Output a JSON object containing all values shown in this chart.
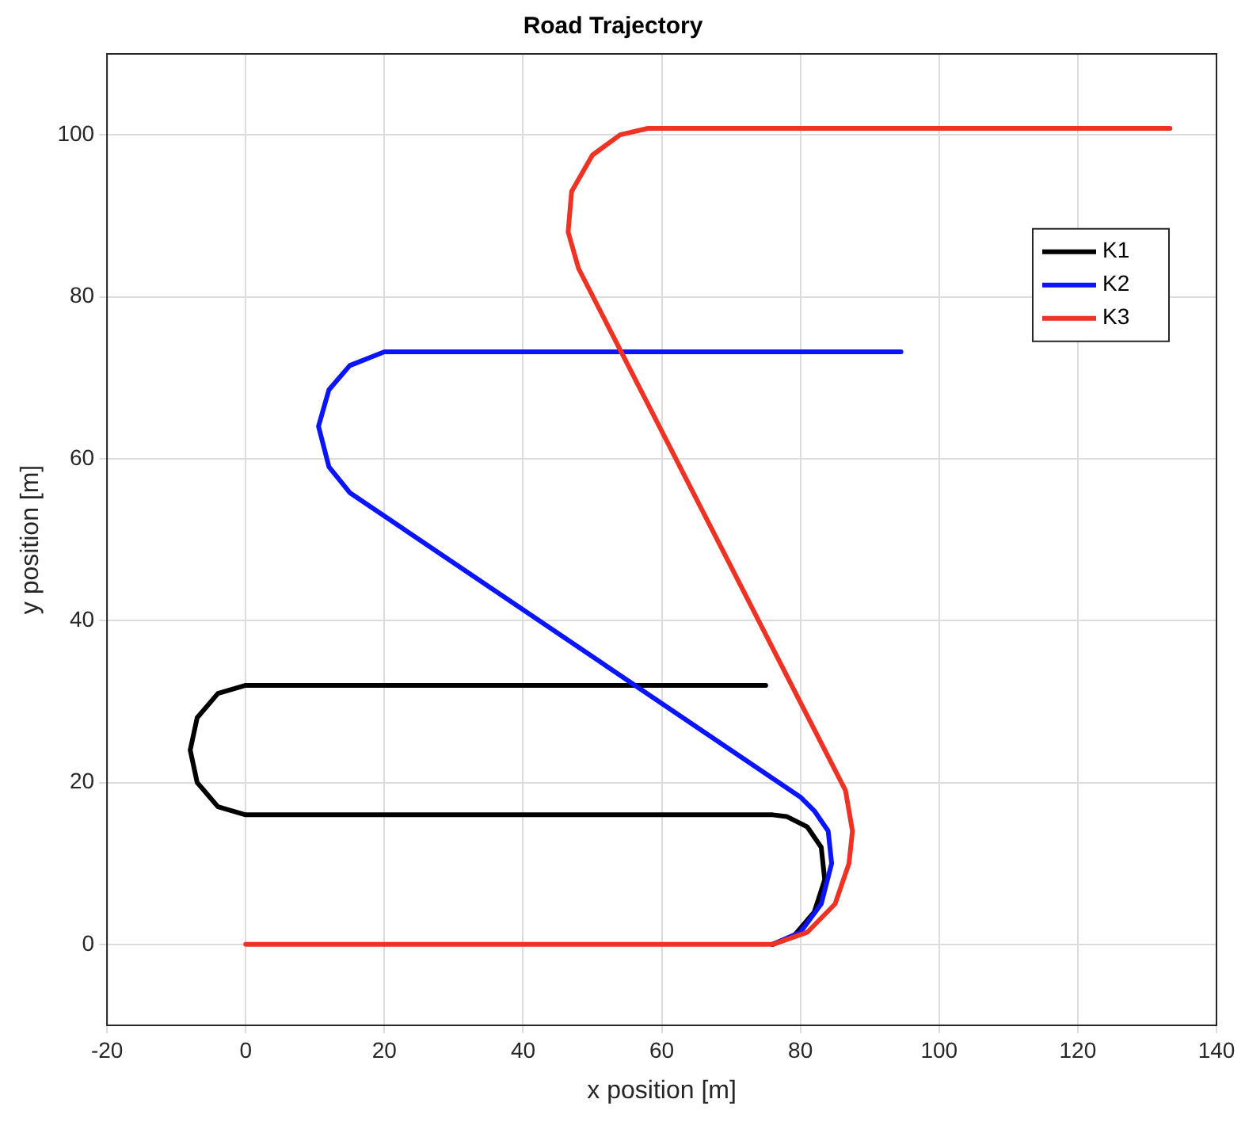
{
  "chart_data": {
    "type": "line",
    "title": "Road Trajectory",
    "xlabel": "x position [m]",
    "ylabel": "y position [m]",
    "xlim": [
      -20,
      140
    ],
    "xticks": [
      -20,
      0,
      20,
      40,
      60,
      80,
      100,
      120,
      140
    ],
    "ylim": [
      -10,
      110
    ],
    "yticks": [
      0,
      20,
      40,
      60,
      80,
      100
    ],
    "grid": true,
    "legend": "top right",
    "marker": "none",
    "line_style": "solid",
    "series": [
      {
        "name": "K1",
        "color": "#000000",
        "x": [
          76,
          79,
          82,
          83.5,
          83,
          81,
          78,
          76,
          0,
          -4,
          -7,
          -8,
          -7,
          -4,
          0,
          75
        ],
        "values": [
          0,
          1,
          4,
          8,
          12,
          14.5,
          15.8,
          16,
          16,
          17,
          20,
          24,
          28,
          31,
          32,
          32
        ]
      },
      {
        "name": "K2",
        "color": "#0a14ff",
        "x": [
          76,
          80,
          83,
          84.5,
          84,
          82,
          80,
          15,
          12,
          10.5,
          12,
          15,
          20,
          94.5
        ],
        "values": [
          0,
          1.5,
          5,
          10,
          14,
          16.5,
          18.2,
          55.8,
          59,
          64,
          68.5,
          71.5,
          73.2,
          73.2
        ]
      },
      {
        "name": "K3",
        "color": "#ee3224",
        "x": [
          0,
          76,
          81,
          85,
          87,
          87.5,
          86.5,
          48,
          46.5,
          47,
          50,
          54,
          58,
          133.3
        ],
        "values": [
          0,
          0,
          1.5,
          5,
          10,
          14,
          19,
          83.5,
          88,
          93,
          97.5,
          100,
          100.8,
          100.8
        ]
      }
    ]
  }
}
